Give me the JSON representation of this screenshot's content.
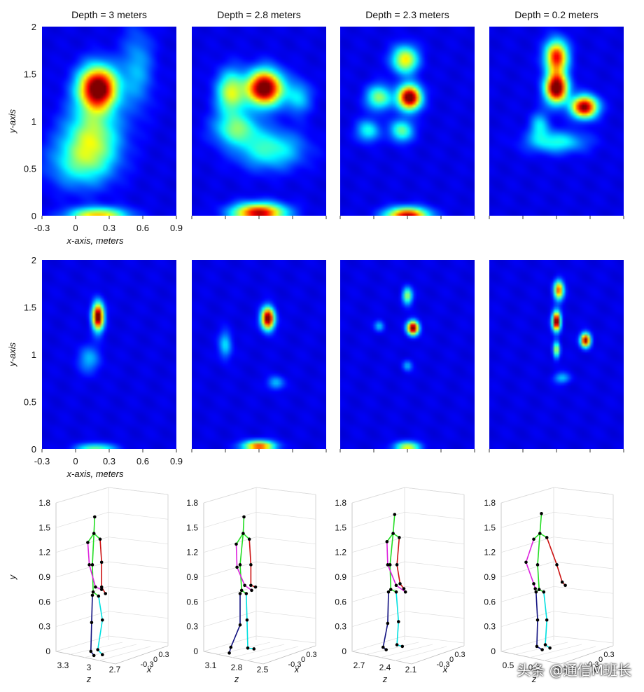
{
  "chart_data": {
    "type": "heatmap",
    "panel_titles": [
      "Depth = 3 meters",
      "Depth = 2.8 meters",
      "Depth = 2.3 meters",
      "Depth = 0.2 meters"
    ],
    "heatmap_axes": {
      "xlabel": "x-axis, meters",
      "ylabel": "y-axis",
      "x_ticks": [
        -0.3,
        0,
        0.3,
        0.6,
        0.9
      ],
      "x_tick_labels": [
        "-0.3",
        "0",
        "0.3",
        "0.6",
        "0.9"
      ],
      "y_ticks": [
        0,
        0.5,
        1,
        1.5,
        2
      ],
      "y_tick_labels_row1": [
        "0",
        "0.5",
        "1",
        "1.5",
        "2"
      ],
      "y_tick_labels_row2": [
        "0",
        "0.5",
        "1",
        "1.5",
        "2"
      ],
      "xlim": [
        -0.3,
        0.9
      ],
      "ylim": [
        0,
        2
      ],
      "colormap": [
        "#00008f",
        "#0000ff",
        "#0080ff",
        "#00ffff",
        "#80ff80",
        "#ffff00",
        "#ff8000",
        "#ff0000",
        "#800000"
      ]
    },
    "heatmaps": [
      {
        "row": "coarse",
        "panels": [
          {
            "depth": 3,
            "blobs": [
              {
                "x": 0.2,
                "y": 1.35,
                "sx": 0.12,
                "sy": 0.16,
                "a": 1.0
              },
              {
                "x": 0.15,
                "y": 0.85,
                "sx": 0.17,
                "sy": 0.22,
                "a": 0.42
              },
              {
                "x": 0.05,
                "y": 0.55,
                "sx": 0.2,
                "sy": 0.18,
                "a": 0.28
              },
              {
                "x": 0.2,
                "y": 0.0,
                "sx": 0.18,
                "sy": 0.06,
                "a": 0.6
              },
              {
                "x": 0.55,
                "y": 1.55,
                "sx": 0.1,
                "sy": 0.3,
                "a": 0.2
              }
            ]
          },
          {
            "depth": 2.8,
            "blobs": [
              {
                "x": 0.35,
                "y": 1.35,
                "sx": 0.11,
                "sy": 0.13,
                "a": 1.0
              },
              {
                "x": 0.05,
                "y": 1.3,
                "sx": 0.09,
                "sy": 0.16,
                "a": 0.48
              },
              {
                "x": 0.1,
                "y": 0.92,
                "sx": 0.14,
                "sy": 0.12,
                "a": 0.36
              },
              {
                "x": 0.4,
                "y": 0.7,
                "sx": 0.2,
                "sy": 0.14,
                "a": 0.33
              },
              {
                "x": 0.3,
                "y": 0.03,
                "sx": 0.16,
                "sy": 0.07,
                "a": 0.85
              },
              {
                "x": 0.65,
                "y": 1.25,
                "sx": 0.08,
                "sy": 0.12,
                "a": 0.25
              }
            ]
          },
          {
            "depth": 2.3,
            "blobs": [
              {
                "x": 0.32,
                "y": 1.25,
                "sx": 0.07,
                "sy": 0.09,
                "a": 1.0
              },
              {
                "x": 0.28,
                "y": 1.65,
                "sx": 0.08,
                "sy": 0.1,
                "a": 0.55
              },
              {
                "x": 0.05,
                "y": 1.25,
                "sx": 0.08,
                "sy": 0.09,
                "a": 0.42
              },
              {
                "x": 0.25,
                "y": 0.9,
                "sx": 0.07,
                "sy": 0.08,
                "a": 0.38
              },
              {
                "x": -0.05,
                "y": 0.9,
                "sx": 0.07,
                "sy": 0.08,
                "a": 0.3
              },
              {
                "x": 0.3,
                "y": 0.0,
                "sx": 0.13,
                "sy": 0.06,
                "a": 0.85
              }
            ]
          },
          {
            "depth": 0.2,
            "blobs": [
              {
                "x": 0.3,
                "y": 1.35,
                "sx": 0.07,
                "sy": 0.11,
                "a": 1.0
              },
              {
                "x": 0.3,
                "y": 1.68,
                "sx": 0.07,
                "sy": 0.12,
                "a": 0.78
              },
              {
                "x": 0.55,
                "y": 1.15,
                "sx": 0.08,
                "sy": 0.08,
                "a": 0.92
              },
              {
                "x": 0.3,
                "y": 0.78,
                "sx": 0.18,
                "sy": 0.08,
                "a": 0.3
              },
              {
                "x": 0.15,
                "y": 0.95,
                "sx": 0.06,
                "sy": 0.1,
                "a": 0.25
              }
            ]
          }
        ]
      },
      {
        "row": "refined",
        "panels": [
          {
            "depth": 3,
            "blobs": [
              {
                "x": 0.2,
                "y": 1.4,
                "sx": 0.035,
                "sy": 0.1,
                "a": 1.0
              },
              {
                "x": 0.12,
                "y": 0.95,
                "sx": 0.07,
                "sy": 0.1,
                "a": 0.2
              },
              {
                "x": 0.18,
                "y": 0.0,
                "sx": 0.12,
                "sy": 0.04,
                "a": 0.4
              }
            ]
          },
          {
            "depth": 2.8,
            "blobs": [
              {
                "x": 0.38,
                "y": 1.38,
                "sx": 0.04,
                "sy": 0.08,
                "a": 1.0
              },
              {
                "x": 0.0,
                "y": 1.1,
                "sx": 0.04,
                "sy": 0.1,
                "a": 0.25
              },
              {
                "x": 0.45,
                "y": 0.7,
                "sx": 0.05,
                "sy": 0.05,
                "a": 0.22
              },
              {
                "x": 0.3,
                "y": 0.03,
                "sx": 0.1,
                "sy": 0.04,
                "a": 0.72
              }
            ]
          },
          {
            "depth": 2.3,
            "blobs": [
              {
                "x": 0.35,
                "y": 1.28,
                "sx": 0.035,
                "sy": 0.05,
                "a": 1.0
              },
              {
                "x": 0.3,
                "y": 1.62,
                "sx": 0.03,
                "sy": 0.06,
                "a": 0.45
              },
              {
                "x": 0.05,
                "y": 1.3,
                "sx": 0.03,
                "sy": 0.04,
                "a": 0.22
              },
              {
                "x": 0.3,
                "y": 0.88,
                "sx": 0.03,
                "sy": 0.04,
                "a": 0.2
              },
              {
                "x": 0.3,
                "y": 0.02,
                "sx": 0.08,
                "sy": 0.04,
                "a": 0.5
              }
            ]
          },
          {
            "depth": 0.2,
            "blobs": [
              {
                "x": 0.3,
                "y": 1.35,
                "sx": 0.025,
                "sy": 0.07,
                "a": 1.0
              },
              {
                "x": 0.32,
                "y": 1.68,
                "sx": 0.03,
                "sy": 0.07,
                "a": 0.7
              },
              {
                "x": 0.56,
                "y": 1.15,
                "sx": 0.03,
                "sy": 0.05,
                "a": 0.92
              },
              {
                "x": 0.3,
                "y": 1.05,
                "sx": 0.02,
                "sy": 0.06,
                "a": 0.5
              },
              {
                "x": 0.35,
                "y": 0.75,
                "sx": 0.05,
                "sy": 0.04,
                "a": 0.22
              }
            ]
          }
        ]
      }
    ],
    "skeletons": {
      "ylabel": "y",
      "xlabel": "x",
      "zlabel": "z",
      "y_ticks": [
        0,
        0.3,
        0.6,
        0.9,
        1.2,
        1.5,
        1.8
      ],
      "y_tick_labels": [
        "0",
        "0.3",
        "0.6",
        "0.9",
        "1.2",
        "1.5",
        "1.8"
      ],
      "x_tick_labels": [
        "-0.3",
        "0",
        "0.3"
      ],
      "bone_colors": {
        "spine": "#22dd22",
        "left_arm": "#dd22dd",
        "right_arm": "#cc1111",
        "left_leg": "#101080",
        "right_leg": "#00e0e0",
        "joint": "#000000"
      },
      "panels": [
        {
          "depth": 3,
          "z_tick_labels": [
            "3.3",
            "3",
            "2.7"
          ],
          "joints": {
            "head": [
              0.03,
              1.63
            ],
            "neck": [
              0.02,
              1.43
            ],
            "spine_mid": [
              0.0,
              1.05
            ],
            "pelvis": [
              0.01,
              0.72
            ],
            "l_shoulder": [
              -0.06,
              1.32
            ],
            "r_shoulder": [
              0.1,
              1.36
            ],
            "l_elbow": [
              -0.04,
              1.05
            ],
            "r_elbow": [
              0.12,
              1.08
            ],
            "l_wrist": [
              0.04,
              0.78
            ],
            "r_wrist": [
              0.12,
              0.78
            ],
            "l_hand": [
              0.12,
              0.75
            ],
            "r_hand": [
              0.17,
              0.7
            ],
            "l_hip": [
              0.0,
              0.68
            ],
            "r_hip": [
              0.08,
              0.67
            ],
            "l_knee": [
              -0.01,
              0.35
            ],
            "r_knee": [
              0.13,
              0.38
            ],
            "l_ankle": [
              -0.02,
              0.0
            ],
            "r_ankle": [
              0.07,
              0.02
            ],
            "l_foot": [
              0.02,
              -0.05
            ],
            "r_foot": [
              0.13,
              -0.04
            ]
          }
        },
        {
          "depth": 2.8,
          "z_tick_labels": [
            "3.1",
            "2.8",
            "2.5"
          ],
          "joints": {
            "head": [
              0.05,
              1.63
            ],
            "neck": [
              0.04,
              1.43
            ],
            "spine_mid": [
              0.0,
              1.05
            ],
            "pelvis": [
              0.02,
              0.74
            ],
            "l_shoulder": [
              -0.05,
              1.3
            ],
            "r_shoulder": [
              0.12,
              1.36
            ],
            "l_elbow": [
              -0.04,
              1.02
            ],
            "r_elbow": [
              0.14,
              1.05
            ],
            "l_wrist": [
              0.06,
              0.8
            ],
            "r_wrist": [
              0.14,
              0.8
            ],
            "l_hand": [
              0.15,
              0.74
            ],
            "r_hand": [
              0.2,
              0.78
            ],
            "l_hip": [
              0.0,
              0.7
            ],
            "r_hip": [
              0.08,
              0.7
            ],
            "l_knee": [
              0.0,
              0.32
            ],
            "r_knee": [
              0.09,
              0.38
            ],
            "l_ankle": [
              -0.12,
              0.05
            ],
            "r_ankle": [
              0.1,
              0.04
            ],
            "l_foot": [
              -0.14,
              -0.02
            ],
            "r_foot": [
              0.18,
              0.03
            ]
          }
        },
        {
          "depth": 2.3,
          "z_tick_labels": [
            "2.7",
            "2.4",
            "2.1"
          ],
          "joints": {
            "head": [
              0.08,
              1.66
            ],
            "neck": [
              0.06,
              1.43
            ],
            "spine_mid": [
              0.02,
              1.05
            ],
            "pelvis": [
              0.03,
              0.75
            ],
            "l_shoulder": [
              -0.02,
              1.33
            ],
            "r_shoulder": [
              0.14,
              1.38
            ],
            "l_elbow": [
              -0.01,
              1.05
            ],
            "r_elbow": [
              0.11,
              1.05
            ],
            "l_wrist": [
              0.1,
              0.8
            ],
            "r_wrist": [
              0.15,
              0.82
            ],
            "l_hand": [
              0.22,
              0.72
            ],
            "r_hand": [
              0.2,
              0.76
            ],
            "l_hip": [
              0.0,
              0.72
            ],
            "r_hip": [
              0.1,
              0.72
            ],
            "l_knee": [
              -0.01,
              0.34
            ],
            "r_knee": [
              0.13,
              0.36
            ],
            "l_ankle": [
              -0.07,
              0.05
            ],
            "r_ankle": [
              0.11,
              0.08
            ],
            "l_foot": [
              -0.03,
              0.02
            ],
            "r_foot": [
              0.18,
              0.06
            ]
          }
        },
        {
          "depth": 0.2,
          "z_tick_labels": [
            "0.5",
            "0.2",
            "-0.1"
          ],
          "joints": {
            "head": [
              0.05,
              1.67
            ],
            "neck": [
              0.03,
              1.43
            ],
            "spine_mid": [
              0.0,
              1.05
            ],
            "pelvis": [
              0.02,
              0.75
            ],
            "l_shoulder": [
              -0.05,
              1.36
            ],
            "r_shoulder": [
              0.12,
              1.38
            ],
            "l_elbow": [
              -0.15,
              1.08
            ],
            "r_elbow": [
              0.25,
              1.05
            ],
            "l_wrist": [
              -0.05,
              0.82
            ],
            "r_wrist": [
              0.32,
              0.84
            ],
            "l_hand": [
              -0.03,
              0.76
            ],
            "r_hand": [
              0.36,
              0.8
            ],
            "l_hip": [
              -0.02,
              0.72
            ],
            "r_hip": [
              0.08,
              0.72
            ],
            "l_knee": [
              0.0,
              0.38
            ],
            "r_knee": [
              0.12,
              0.38
            ],
            "l_ankle": [
              -0.01,
              0.06
            ],
            "r_ankle": [
              0.1,
              0.08
            ],
            "l_foot": [
              0.06,
              0.02
            ],
            "r_foot": [
              0.16,
              0.04
            ]
          }
        }
      ]
    }
  },
  "watermark": "头条 @通信M班长"
}
